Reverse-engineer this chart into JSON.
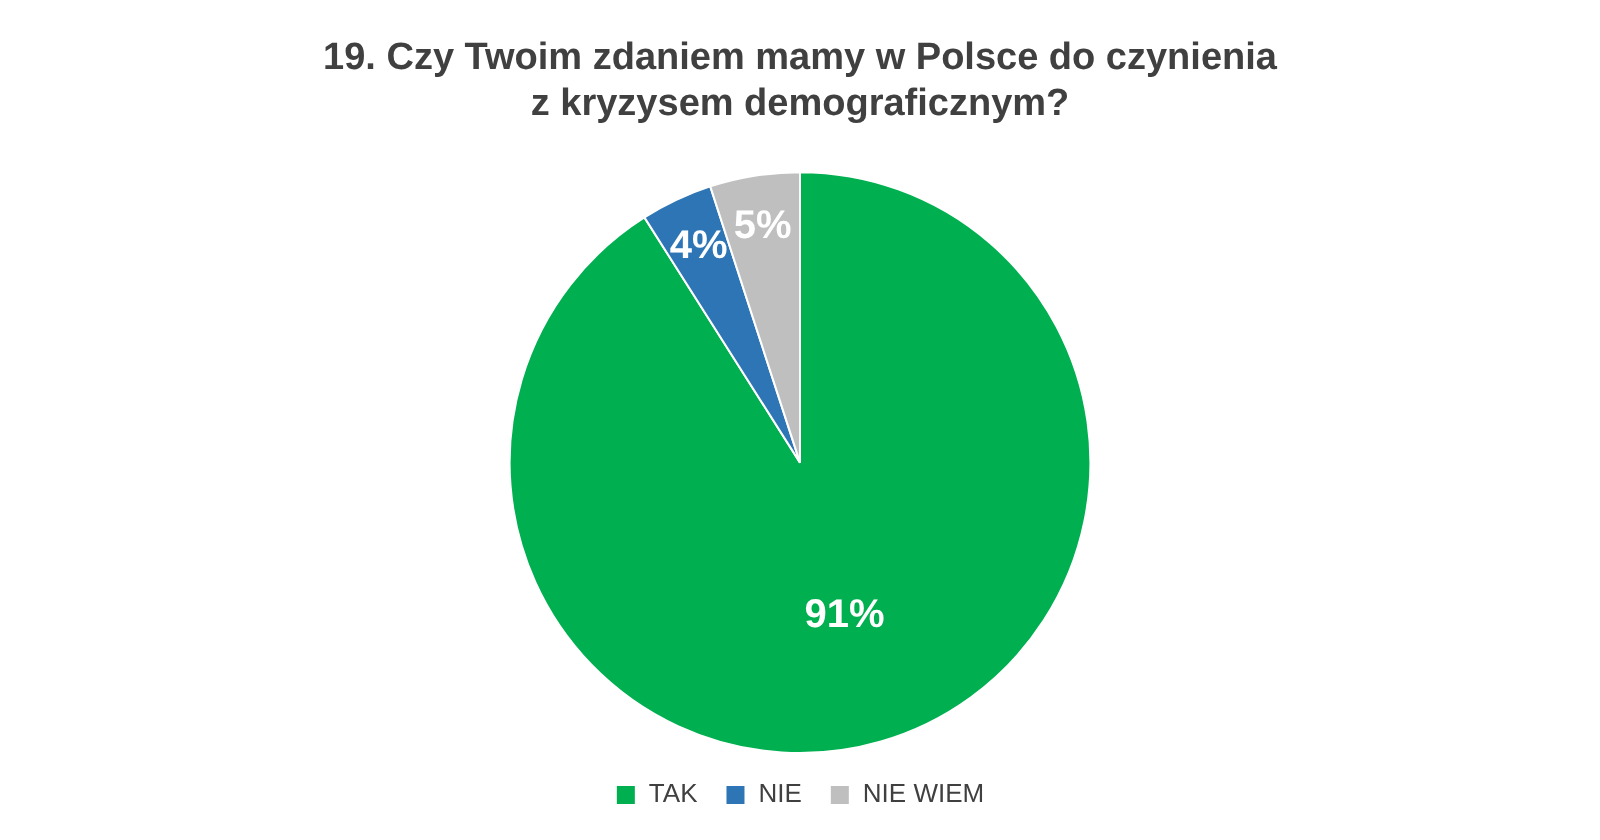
{
  "chart_data": {
    "type": "pie",
    "title": "19. Czy Twoim zdaniem mamy w Polsce do czynienia\nz kryzysem demograficznym?",
    "categories": [
      "TAK",
      "NIE",
      "NIE WIEM"
    ],
    "values": [
      91,
      4,
      5
    ],
    "colors": [
      "#00b050",
      "#2e75b6",
      "#bfbfbf"
    ],
    "value_labels": [
      "91%",
      "4%",
      "5%"
    ],
    "legend": "bottom"
  }
}
